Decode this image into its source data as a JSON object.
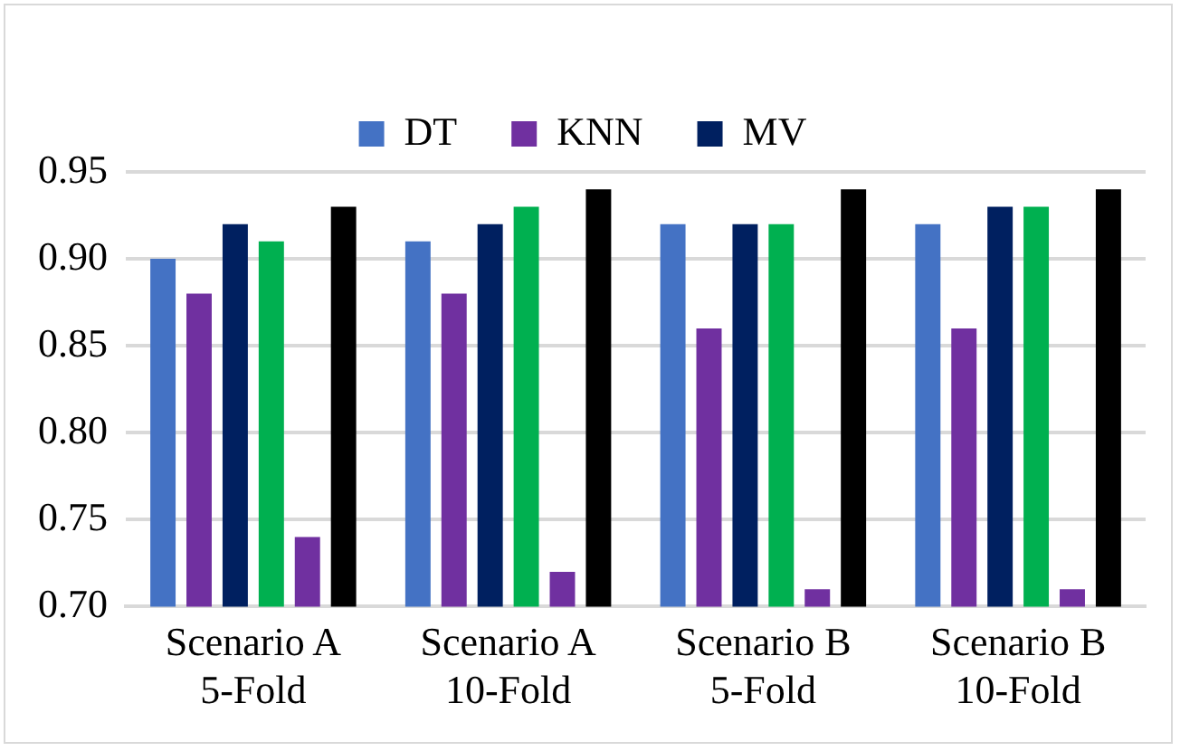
{
  "chart_data": {
    "type": "bar",
    "categories": [
      "Scenario A\n5-Fold",
      "Scenario A\n10-Fold",
      "Scenario B\n5-Fold",
      "Scenario B\n10-Fold"
    ],
    "series": [
      {
        "name": "DT",
        "color": "#4472c4",
        "values": [
          0.9,
          0.91,
          0.92,
          0.92
        ]
      },
      {
        "name": "KNN",
        "color": "#7030a0",
        "values": [
          0.88,
          0.88,
          0.86,
          0.86
        ]
      },
      {
        "name": "MV",
        "color": "#002060",
        "values": [
          0.92,
          0.92,
          0.92,
          0.93
        ]
      },
      {
        "color": "#00b050",
        "values": [
          0.91,
          0.93,
          0.92,
          0.93
        ]
      },
      {
        "color": "#7030a0",
        "values": [
          0.74,
          0.72,
          0.71,
          0.71
        ]
      },
      {
        "color": "#000000",
        "values": [
          0.93,
          0.94,
          0.94,
          0.94
        ]
      }
    ],
    "ylim": [
      0.7,
      0.95
    ],
    "yticks": [
      {
        "value": 0.7,
        "label": "0.70"
      },
      {
        "value": 0.75,
        "label": "0.75"
      },
      {
        "value": 0.8,
        "label": "0.80"
      },
      {
        "value": 0.85,
        "label": "0.85"
      },
      {
        "value": 0.9,
        "label": "0.90"
      },
      {
        "value": 0.95,
        "label": "0.95"
      }
    ],
    "grid": "y",
    "legend": "top"
  }
}
